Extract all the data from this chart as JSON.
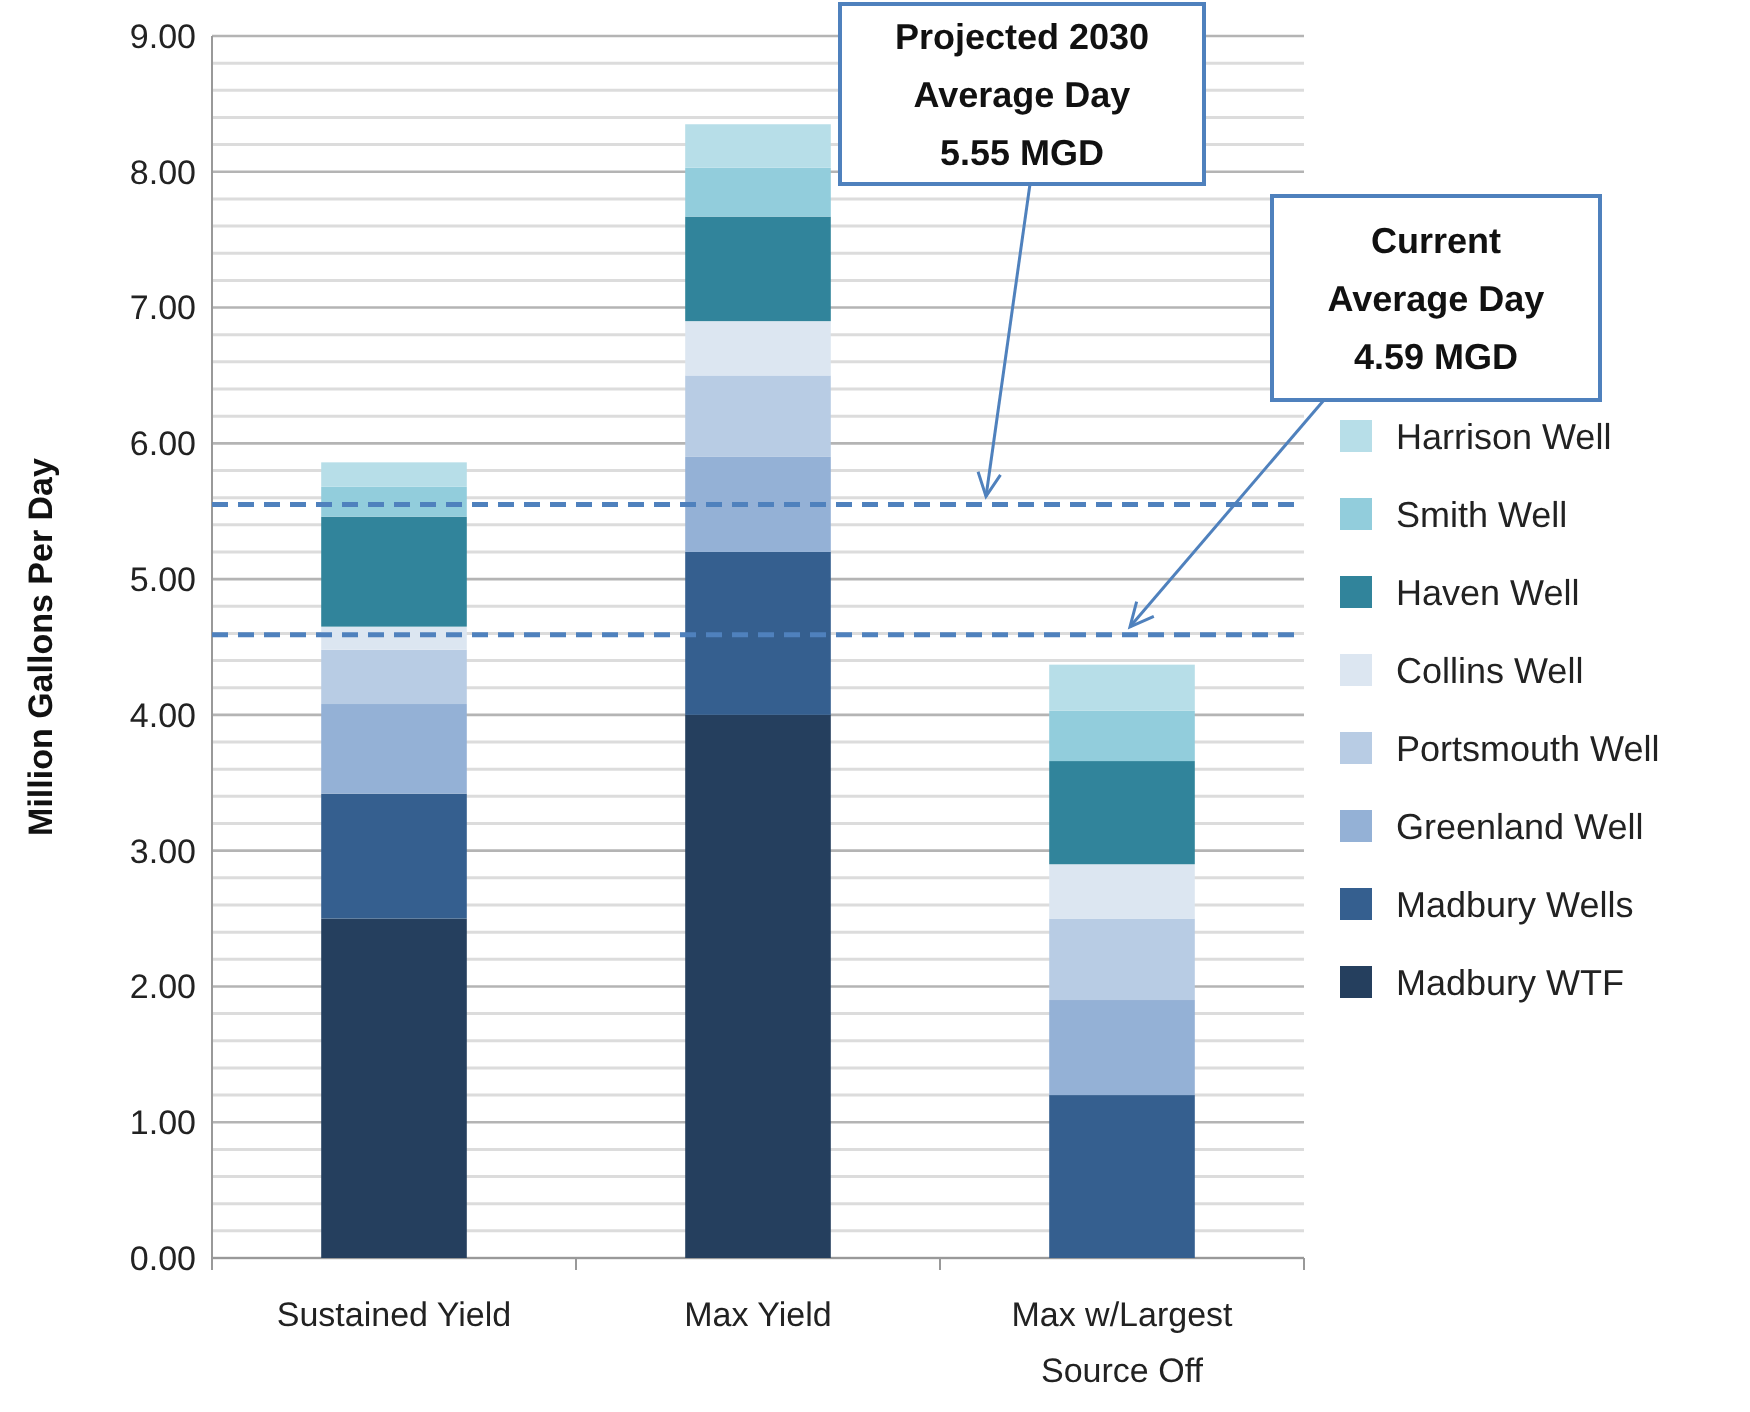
{
  "chart_data": {
    "type": "bar",
    "stacked": true,
    "ylabel": "Million Gallons Per Day",
    "categories": [
      "Sustained Yield",
      "Max Yield",
      "Max w/Largest Source Off"
    ],
    "series": [
      {
        "name": "Madbury WTF",
        "color": "#253f5e",
        "values": [
          2.5,
          4.0,
          0
        ]
      },
      {
        "name": "Madbury Wells",
        "color": "#355f8f",
        "values": [
          0.92,
          1.2,
          1.2
        ]
      },
      {
        "name": "Greenland Well",
        "color": "#94b1d6",
        "values": [
          0.66,
          0.7,
          0.7
        ]
      },
      {
        "name": "Portsmouth Well",
        "color": "#b8cce4",
        "values": [
          0.4,
          0.6,
          0.6
        ]
      },
      {
        "name": "Collins Well",
        "color": "#dce6f1",
        "values": [
          0.17,
          0.4,
          0.4
        ]
      },
      {
        "name": "Haven Well",
        "color": "#31849b",
        "values": [
          0.81,
          0.77,
          0.76
        ]
      },
      {
        "name": "Smith Well",
        "color": "#92cddc",
        "values": [
          0.22,
          0.36,
          0.37
        ]
      },
      {
        "name": "Harrison Well",
        "color": "#b7dee8",
        "values": [
          0.18,
          0.32,
          0.34
        ]
      }
    ],
    "ylim": [
      0,
      9
    ],
    "yticks": [
      {
        "value": 0,
        "label": "0.00"
      },
      {
        "value": 0.2,
        "label": null
      },
      {
        "value": 0.4,
        "label": null
      },
      {
        "value": 0.6,
        "label": null
      },
      {
        "value": 0.8,
        "label": null
      },
      {
        "value": 1,
        "label": "1.00"
      },
      {
        "value": 1.2,
        "label": null
      },
      {
        "value": 1.4,
        "label": null
      },
      {
        "value": 1.6,
        "label": null
      },
      {
        "value": 1.8,
        "label": null
      },
      {
        "value": 2,
        "label": "2.00"
      },
      {
        "value": 2.2,
        "label": null
      },
      {
        "value": 2.4,
        "label": null
      },
      {
        "value": 2.6,
        "label": null
      },
      {
        "value": 2.8,
        "label": null
      },
      {
        "value": 3,
        "label": "3.00"
      },
      {
        "value": 3.2,
        "label": null
      },
      {
        "value": 3.4,
        "label": null
      },
      {
        "value": 3.6,
        "label": null
      },
      {
        "value": 3.8,
        "label": null
      },
      {
        "value": 4,
        "label": "4.00"
      },
      {
        "value": 4.2,
        "label": null
      },
      {
        "value": 4.4,
        "label": null
      },
      {
        "value": 4.6,
        "label": null
      },
      {
        "value": 4.8,
        "label": null
      },
      {
        "value": 5,
        "label": "5.00"
      },
      {
        "value": 5.2,
        "label": null
      },
      {
        "value": 5.4,
        "label": null
      },
      {
        "value": 5.6,
        "label": null
      },
      {
        "value": 5.8,
        "label": null
      },
      {
        "value": 6,
        "label": "6.00"
      },
      {
        "value": 6.2,
        "label": null
      },
      {
        "value": 6.4,
        "label": null
      },
      {
        "value": 6.6,
        "label": null
      },
      {
        "value": 6.8,
        "label": null
      },
      {
        "value": 7,
        "label": "7.00"
      },
      {
        "value": 7.2,
        "label": null
      },
      {
        "value": 7.4,
        "label": null
      },
      {
        "value": 7.6,
        "label": null
      },
      {
        "value": 7.8,
        "label": null
      },
      {
        "value": 8,
        "label": "8.00"
      },
      {
        "value": 8.2,
        "label": null
      },
      {
        "value": 8.4,
        "label": null
      },
      {
        "value": 8.6,
        "label": null
      },
      {
        "value": 8.8,
        "label": null
      },
      {
        "value": 9,
        "label": "9.00"
      }
    ],
    "grid": "y",
    "legend": "right",
    "ref_lines": [
      {
        "axis": "y",
        "value": 5.55,
        "label": "Projected 2030\nAverage Day\n5.55 MGD",
        "color": "#4f81bd",
        "line_style": "dashed"
      },
      {
        "axis": "y",
        "value": 4.59,
        "label": "Current\nAverage Day\n4.59 MGD",
        "color": "#4f81bd",
        "line_style": "dashed"
      }
    ]
  }
}
